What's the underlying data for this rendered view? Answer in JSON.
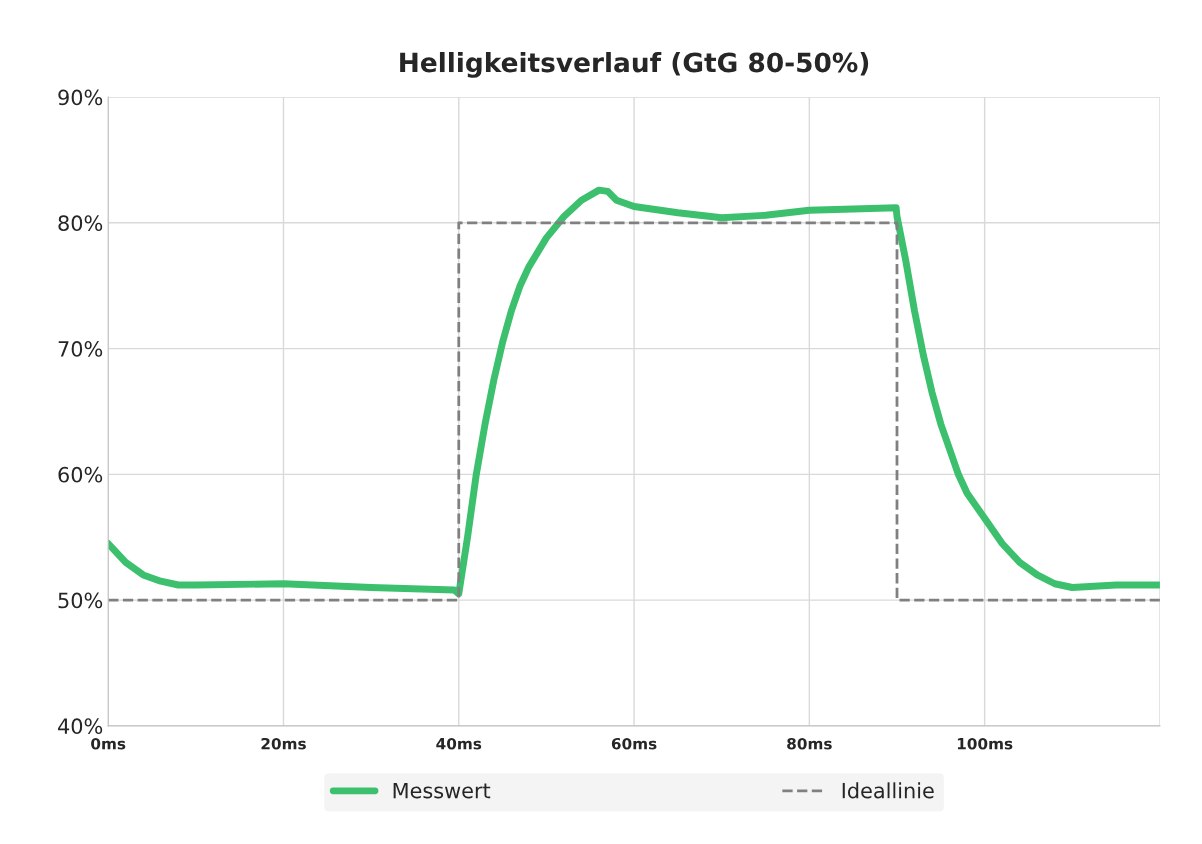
{
  "chart_data": {
    "type": "line",
    "title": "Helligkeitsverlauf (GtG 80-50%)",
    "xlim": [
      0,
      120
    ],
    "xticks": [
      {
        "value": 0,
        "label": "0ms"
      },
      {
        "value": 20,
        "label": "20ms"
      },
      {
        "value": 40,
        "label": "40ms"
      },
      {
        "value": 60,
        "label": "60ms"
      },
      {
        "value": 80,
        "label": "80ms"
      },
      {
        "value": 100,
        "label": "100ms"
      },
      {
        "value": 120,
        "label": null
      }
    ],
    "ylim": [
      40,
      90
    ],
    "yticks": [
      {
        "value": 40,
        "label": "40%"
      },
      {
        "value": 50,
        "label": "50%"
      },
      {
        "value": 60,
        "label": "60%"
      },
      {
        "value": 70,
        "label": "70%"
      },
      {
        "value": 80,
        "label": "80%"
      },
      {
        "value": 90,
        "label": "90%"
      }
    ],
    "grid": true,
    "legend": "bottom",
    "series": [
      {
        "name": "Messwert",
        "color": "#3cc06e",
        "line_style": "solid",
        "x": [
          0,
          2,
          4,
          6,
          8,
          10,
          20,
          30,
          39.5,
          40,
          41,
          42,
          43,
          44,
          45,
          46,
          47,
          48,
          50,
          52,
          54,
          56,
          57,
          58,
          60,
          65,
          70,
          75,
          80,
          85,
          89.9,
          90,
          91,
          92,
          93,
          94,
          95,
          96,
          97,
          98,
          100,
          102,
          104,
          106,
          108,
          110,
          115,
          120
        ],
        "values": [
          54.5,
          53,
          52,
          51.5,
          51.2,
          51.2,
          51.3,
          51,
          50.8,
          50.5,
          55,
          60,
          64,
          67.5,
          70.5,
          73,
          75,
          76.5,
          78.8,
          80.5,
          81.8,
          82.6,
          82.5,
          81.8,
          81.3,
          80.8,
          80.4,
          80.6,
          81,
          81.1,
          81.2,
          80.5,
          77,
          73,
          69.5,
          66.5,
          64,
          62,
          60,
          58.5,
          56.5,
          54.5,
          53,
          52,
          51.3,
          51,
          51.2,
          51.2
        ]
      },
      {
        "name": "Ideallinie",
        "color": "#808080",
        "line_style": "dashed",
        "x": [
          0,
          40,
          40,
          90,
          90,
          120
        ],
        "values": [
          50,
          50,
          80,
          80,
          50,
          50
        ]
      }
    ]
  }
}
